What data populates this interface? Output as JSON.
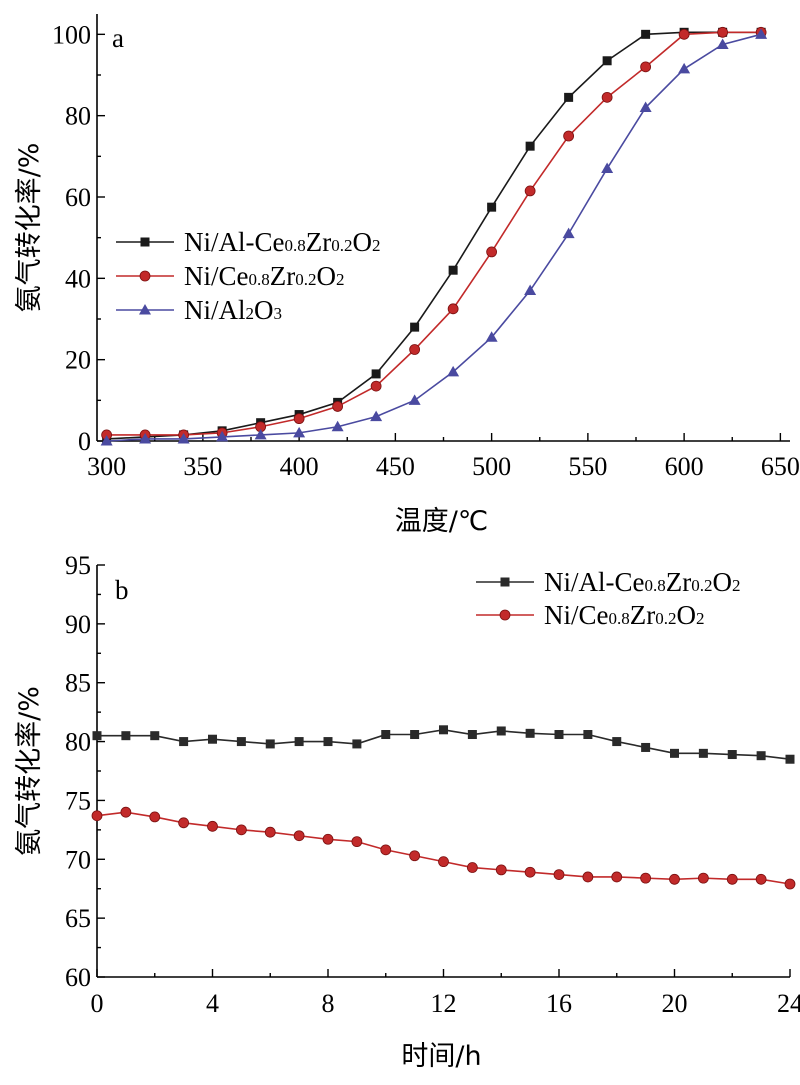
{
  "chart_data": [
    {
      "panel": "a",
      "type": "line",
      "xlabel": "温度/℃",
      "ylabel": "氨气转化率/%",
      "xlim": [
        295,
        655
      ],
      "ylim": [
        0,
        105
      ],
      "xticks": [
        300,
        350,
        400,
        450,
        500,
        550,
        600,
        650
      ],
      "yticks": [
        0,
        20,
        40,
        60,
        80,
        100
      ],
      "legend": "center-left",
      "grid": false,
      "series": [
        {
          "name": "Ni/Al-Ce0.8Zr0.2O2",
          "label_parts": [
            [
              "Ni/Al-Ce",
              false
            ],
            [
              "0.8",
              true
            ],
            [
              "Zr",
              false
            ],
            [
              "0.2",
              true
            ],
            [
              "O",
              false
            ],
            [
              "2",
              true
            ]
          ],
          "color": "#1a1a1a",
          "marker": "square",
          "x": [
            300,
            320,
            340,
            360,
            380,
            400,
            420,
            440,
            460,
            480,
            500,
            520,
            540,
            560,
            580,
            600,
            620,
            640
          ],
          "y": [
            0.5,
            1,
            1.5,
            2.5,
            4.5,
            6.5,
            9.5,
            16.5,
            28,
            42,
            57.5,
            72.5,
            84.5,
            93.5,
            100,
            100.5,
            100.5,
            100.5
          ]
        },
        {
          "name": "Ni/Ce0.8Zr0.2O2",
          "label_parts": [
            [
              "Ni/Ce",
              false
            ],
            [
              "0.8",
              true
            ],
            [
              "Zr",
              false
            ],
            [
              "0.2",
              true
            ],
            [
              "O",
              false
            ],
            [
              "2",
              true
            ]
          ],
          "color": "#c22a2a",
          "marker": "circle",
          "x": [
            300,
            320,
            340,
            360,
            380,
            400,
            420,
            440,
            460,
            480,
            500,
            520,
            540,
            560,
            580,
            600,
            620,
            640
          ],
          "y": [
            1.5,
            1.5,
            1.5,
            2,
            3.5,
            5.5,
            8.5,
            13.5,
            22.5,
            32.5,
            46.5,
            61.5,
            75,
            84.5,
            92,
            100,
            100.5,
            100.5
          ]
        },
        {
          "name": "Ni/Al2O3",
          "label_parts": [
            [
              "Ni/Al",
              false
            ],
            [
              "2",
              true
            ],
            [
              "O",
              false
            ],
            [
              "3",
              true
            ]
          ],
          "color": "#4a4aa0",
          "marker": "triangle",
          "x": [
            300,
            320,
            340,
            360,
            380,
            400,
            420,
            440,
            460,
            480,
            500,
            520,
            540,
            560,
            580,
            600,
            620,
            640
          ],
          "y": [
            0,
            0.5,
            0.5,
            1,
            1.5,
            2,
            3.5,
            6,
            10,
            17,
            25.5,
            37,
            51,
            67,
            82,
            91.5,
            97.5,
            100
          ]
        }
      ]
    },
    {
      "panel": "b",
      "type": "line",
      "xlabel": "时间/h",
      "ylabel": "氨气转化率/%",
      "xlim": [
        0,
        24
      ],
      "ylim": [
        60,
        95
      ],
      "xticks": [
        0,
        4,
        8,
        12,
        16,
        20,
        24
      ],
      "yticks": [
        60,
        65,
        70,
        75,
        80,
        85,
        90,
        95
      ],
      "legend": "top-right",
      "grid": false,
      "series": [
        {
          "name": "Ni/Al-Ce0.8Zr0.2O2",
          "label_parts": [
            [
              "Ni/Al-Ce",
              false
            ],
            [
              "0.8",
              true
            ],
            [
              "Zr",
              false
            ],
            [
              "0.2",
              true
            ],
            [
              "O",
              false
            ],
            [
              "2",
              true
            ]
          ],
          "color": "#2a2a2a",
          "marker": "square",
          "x": [
            0,
            1,
            2,
            3,
            4,
            5,
            6,
            7,
            8,
            9,
            10,
            11,
            12,
            13,
            14,
            15,
            16,
            17,
            18,
            19,
            20,
            21,
            22,
            23,
            24
          ],
          "y": [
            80.5,
            80.5,
            80.5,
            80,
            80.2,
            80,
            79.8,
            80,
            80,
            79.8,
            80.6,
            80.6,
            81,
            80.6,
            80.9,
            80.7,
            80.6,
            80.6,
            80,
            79.5,
            79,
            79,
            78.9,
            78.8,
            78.5
          ]
        },
        {
          "name": "Ni/Ce0.8Zr0.2O2",
          "label_parts": [
            [
              "Ni/Ce",
              false
            ],
            [
              "0.8",
              true
            ],
            [
              "Zr",
              false
            ],
            [
              "0.2",
              true
            ],
            [
              "O",
              false
            ],
            [
              "2",
              true
            ]
          ],
          "color": "#c22a2a",
          "marker": "circle",
          "x": [
            0,
            1,
            2,
            3,
            4,
            5,
            6,
            7,
            8,
            9,
            10,
            11,
            12,
            13,
            14,
            15,
            16,
            17,
            18,
            19,
            20,
            21,
            22,
            23,
            24
          ],
          "y": [
            73.7,
            74,
            73.6,
            73.1,
            72.8,
            72.5,
            72.3,
            72,
            71.7,
            71.5,
            70.8,
            70.3,
            69.8,
            69.3,
            69.1,
            68.9,
            68.7,
            68.5,
            68.5,
            68.4,
            68.3,
            68.4,
            68.3,
            68.3,
            67.9
          ]
        }
      ]
    }
  ]
}
